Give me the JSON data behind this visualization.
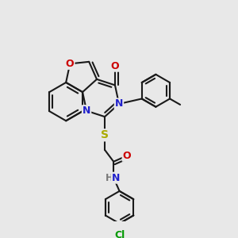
{
  "bg": "#e8e8e8",
  "bond_color": "#1a1a1a",
  "bw": 1.5,
  "colors": {
    "O": "#cc0000",
    "N": "#2222cc",
    "S": "#aaaa00",
    "Cl": "#009900",
    "H": "#777777",
    "C": "#1a1a1a"
  }
}
